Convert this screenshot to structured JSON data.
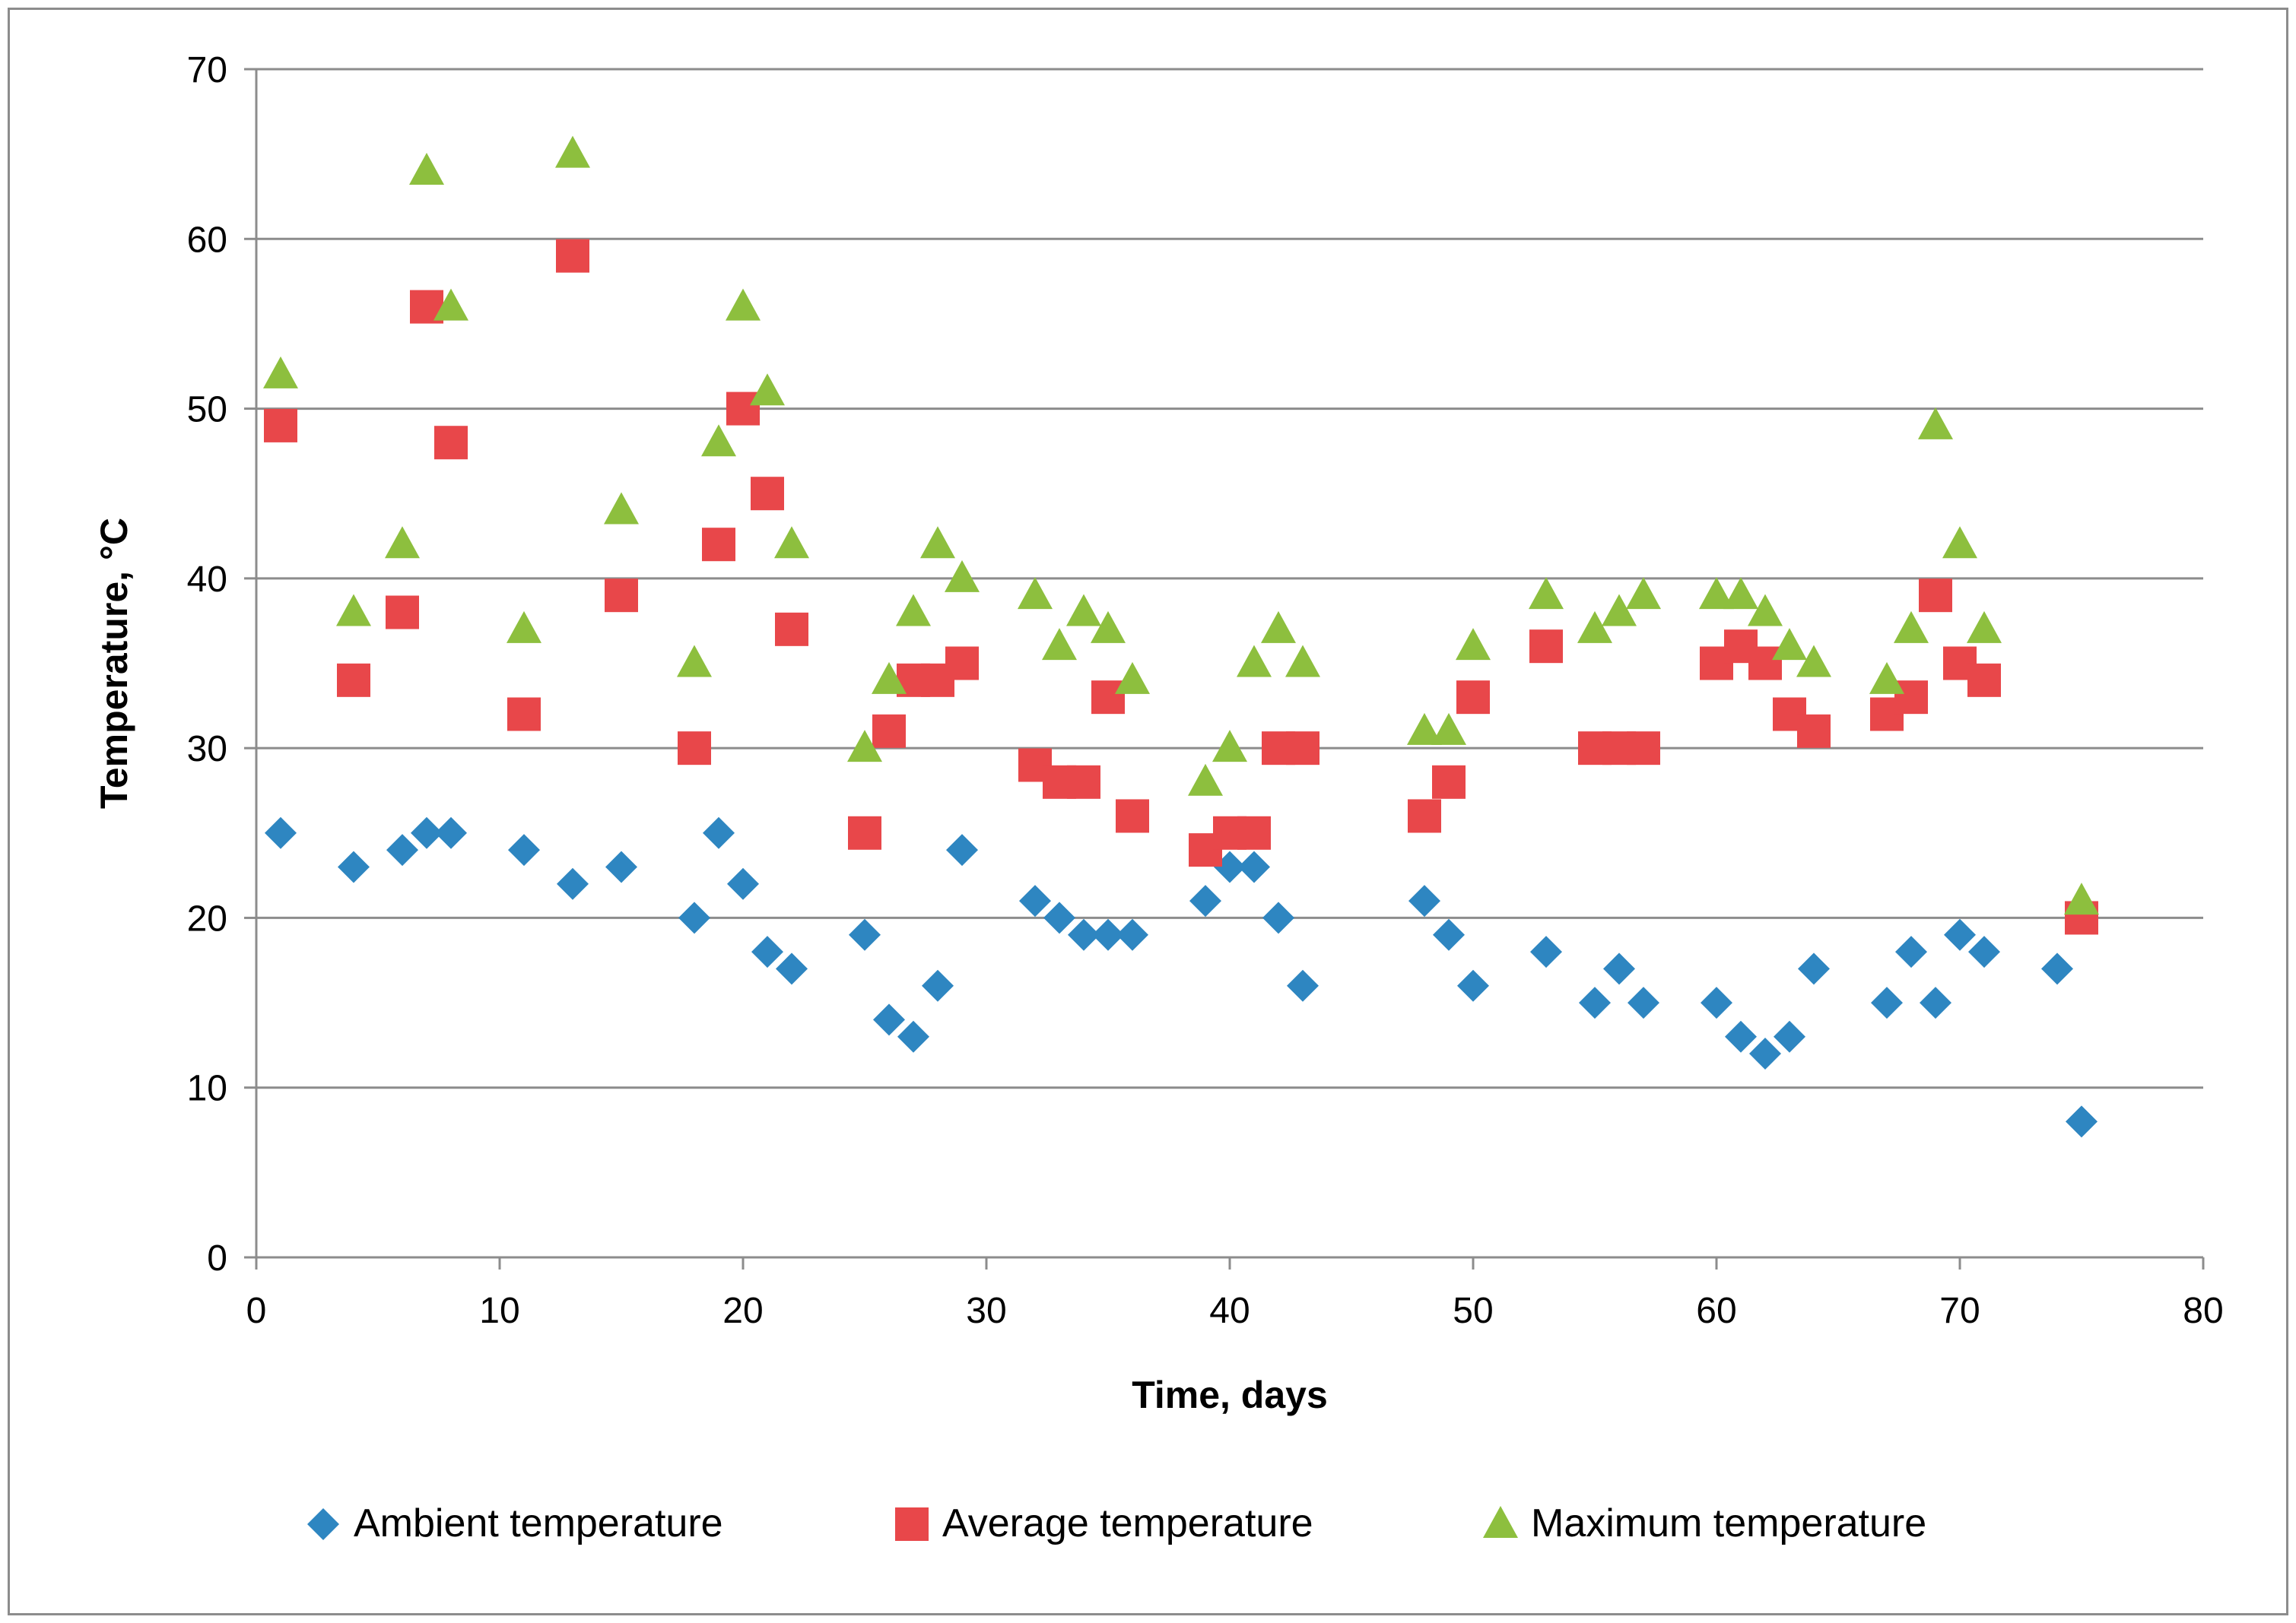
{
  "chart_data": {
    "type": "scatter",
    "title": "",
    "xlabel": "Time, days",
    "ylabel": "Temperature, °C",
    "xlim": [
      0,
      80
    ],
    "ylim": [
      0,
      70
    ],
    "xticks": [
      0,
      10,
      20,
      30,
      40,
      50,
      60,
      70,
      80
    ],
    "yticks": [
      0,
      10,
      20,
      30,
      40,
      50,
      60,
      70
    ],
    "grid": "horizontal",
    "legend_position": "bottom",
    "series": [
      {
        "name": "Ambient temperature",
        "marker": "diamond",
        "color": "#2E86C1",
        "x": [
          1,
          4,
          6,
          7,
          8,
          11,
          13,
          15,
          18,
          19,
          20,
          21,
          22,
          25,
          26,
          27,
          28,
          29,
          32,
          33,
          34,
          35,
          36,
          39,
          40,
          41,
          42,
          43,
          48,
          49,
          50,
          53,
          55,
          56,
          57,
          60,
          61,
          62,
          63,
          64,
          67,
          68,
          69,
          70,
          71,
          74,
          75
        ],
        "y": [
          25,
          23,
          24,
          25,
          25,
          24,
          22,
          23,
          20,
          25,
          22,
          18,
          17,
          19,
          14,
          13,
          16,
          24,
          21,
          20,
          19,
          19,
          19,
          21,
          23,
          23,
          20,
          16,
          21,
          19,
          16,
          18,
          15,
          17,
          15,
          15,
          13,
          12,
          13,
          17,
          15,
          18,
          15,
          19,
          18,
          17,
          8
        ]
      },
      {
        "name": "Average temperature",
        "marker": "square",
        "color": "#E8474A",
        "x": [
          1,
          4,
          6,
          7,
          8,
          11,
          13,
          15,
          18,
          19,
          20,
          21,
          22,
          25,
          26,
          27,
          28,
          29,
          32,
          33,
          34,
          35,
          36,
          39,
          40,
          41,
          42,
          43,
          48,
          49,
          50,
          53,
          55,
          56,
          57,
          60,
          61,
          62,
          63,
          64,
          67,
          68,
          69,
          70,
          71,
          75
        ],
        "y": [
          49,
          34,
          38,
          56,
          48,
          32,
          59,
          39,
          30,
          42,
          50,
          45,
          37,
          25,
          31,
          34,
          34,
          35,
          29,
          28,
          28,
          33,
          26,
          24,
          25,
          25,
          30,
          30,
          26,
          28,
          33,
          36,
          30,
          30,
          30,
          35,
          36,
          35,
          32,
          31,
          32,
          33,
          39,
          35,
          34,
          20
        ]
      },
      {
        "name": "Maximum temperature",
        "marker": "triangle",
        "color": "#8DBF3E",
        "x": [
          1,
          4,
          6,
          7,
          8,
          11,
          13,
          15,
          18,
          19,
          20,
          21,
          22,
          25,
          26,
          27,
          28,
          29,
          32,
          33,
          34,
          35,
          36,
          39,
          40,
          41,
          42,
          43,
          48,
          49,
          50,
          53,
          55,
          56,
          57,
          60,
          61,
          62,
          63,
          64,
          67,
          68,
          69,
          70,
          71,
          75
        ],
        "y": [
          52,
          38,
          42,
          64,
          56,
          37,
          65,
          44,
          35,
          48,
          56,
          51,
          42,
          30,
          34,
          38,
          42,
          40,
          39,
          36,
          38,
          37,
          34,
          28,
          30,
          35,
          37,
          35,
          31,
          31,
          36,
          39,
          37,
          38,
          39,
          39,
          39,
          38,
          36,
          35,
          34,
          37,
          49,
          42,
          37,
          21
        ]
      }
    ]
  }
}
